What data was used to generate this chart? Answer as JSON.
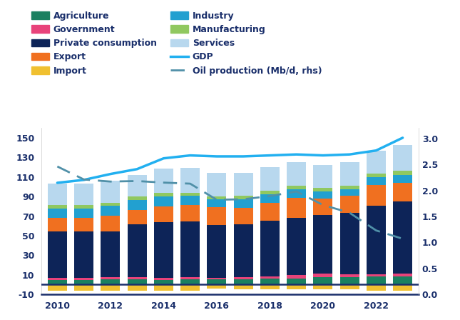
{
  "years": [
    2010,
    2011,
    2012,
    2013,
    2014,
    2015,
    2016,
    2017,
    2018,
    2019,
    2020,
    2021,
    2022,
    2023
  ],
  "agriculture": [
    5.0,
    5.0,
    5.5,
    5.5,
    5.0,
    5.5,
    5.5,
    5.5,
    6.0,
    6.5,
    7.5,
    7.5,
    8.0,
    8.5
  ],
  "government": [
    2.0,
    2.0,
    2.0,
    2.0,
    2.0,
    2.0,
    1.5,
    2.0,
    2.5,
    3.0,
    3.5,
    3.0,
    2.5,
    2.5
  ],
  "private_consumption": [
    47,
    47,
    47,
    54,
    57,
    57,
    54,
    54,
    57,
    59,
    60,
    63,
    70,
    74
  ],
  "export": [
    14,
    14,
    16,
    15,
    16,
    17,
    18,
    17,
    18,
    20,
    17,
    17,
    21,
    19
  ],
  "industry": [
    10,
    10,
    10,
    10,
    10,
    9,
    8,
    9,
    9,
    9,
    7,
    7,
    8,
    8
  ],
  "manufacturing": [
    3.0,
    3.0,
    3.0,
    3.5,
    3.5,
    3.5,
    3.0,
    3.0,
    3.5,
    3.5,
    3.5,
    3.5,
    4.0,
    4.5
  ],
  "services": [
    22,
    22,
    23,
    22,
    25,
    25,
    24,
    24,
    24,
    24,
    24,
    24,
    23,
    26
  ],
  "import": [
    -6,
    -6,
    -6,
    -6,
    -6,
    -6,
    -4,
    -5,
    -5,
    -5,
    -5,
    -5,
    -6,
    -6
  ],
  "gdp": [
    104,
    107,
    113,
    118,
    129,
    132,
    131,
    131,
    132,
    133,
    132,
    133,
    137,
    150
  ],
  "oil_production": [
    2.46,
    2.21,
    2.17,
    2.18,
    2.15,
    2.13,
    1.82,
    1.83,
    1.89,
    1.98,
    1.72,
    1.57,
    1.23,
    1.07
  ],
  "colors": {
    "agriculture": "#1a8060",
    "government": "#e8437a",
    "private_consumption": "#0d2458",
    "export": "#f07020",
    "import": "#f0c030",
    "industry": "#22a0d0",
    "manufacturing": "#90c860",
    "services": "#b8d8ee",
    "gdp_line": "#22b0f0",
    "oil_line": "#5090a8"
  },
  "ylim": [
    -10,
    160
  ],
  "ylim_rhs": [
    0.0,
    3.2
  ],
  "yticks_lhs": [
    -10,
    10,
    30,
    50,
    70,
    90,
    110,
    130,
    150
  ],
  "yticks_rhs": [
    0.0,
    0.5,
    1.0,
    1.5,
    2.0,
    2.5,
    3.0
  ],
  "legend_order_col1": [
    "Agriculture",
    "Private consumption",
    "Import",
    "Manufacturing",
    "GDP"
  ],
  "legend_order_col2": [
    "Government",
    "Export",
    "Industry",
    "Services",
    "Oil production (Mb/d, rhs)"
  ]
}
